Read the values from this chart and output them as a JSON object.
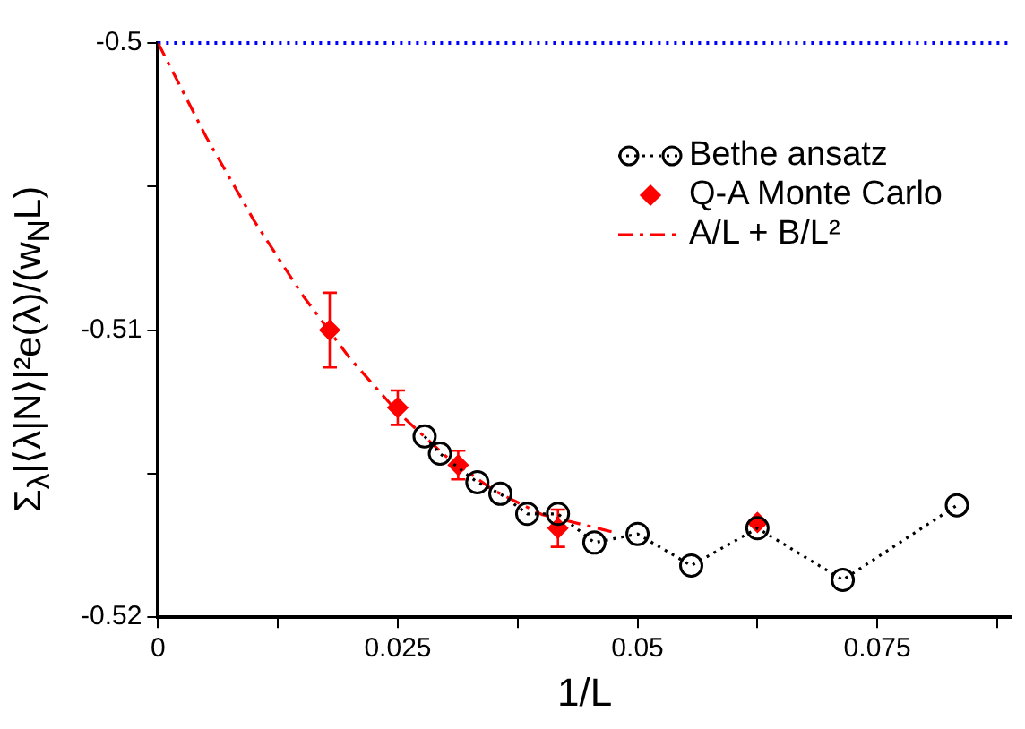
{
  "chart_data": {
    "type": "line",
    "xlabel": "1/L",
    "ylabel": "Σ$_{λ}$|⟨λ|N⟩|²e(λ)/(w$_{N}$L)",
    "xlim": [
      0,
      0.089
    ],
    "ylim": [
      -0.52,
      -0.5
    ],
    "xticks": [
      0,
      {
        "value": 0.0125,
        "label": null
      },
      0.025,
      {
        "value": 0.0375,
        "label": null
      },
      0.05,
      {
        "value": 0.0625,
        "label": null
      },
      0.075,
      {
        "value": 0.0875,
        "label": null
      }
    ],
    "yticks": [
      -0.52,
      {
        "value": -0.515,
        "label": null
      },
      -0.51,
      {
        "value": -0.505,
        "label": null
      },
      -0.5
    ],
    "grid": false,
    "legend": "top right",
    "ref_lines": [
      {
        "axis": "y",
        "value": -0.5,
        "color": "#0000ff",
        "line_style": "dotted"
      }
    ],
    "series": [
      {
        "name": "Bethe ansatz",
        "type": "line",
        "color": "#000000",
        "marker": "circle",
        "line_style": "dotted",
        "x": [
          0.0278,
          0.0294,
          0.0333,
          0.0357,
          0.0385,
          0.0417,
          0.0455,
          0.05,
          0.0556,
          0.0625,
          0.0714,
          0.0833
        ],
        "values": [
          -0.5137,
          -0.5143,
          -0.5153,
          -0.5157,
          -0.5164,
          -0.5164,
          -0.5174,
          -0.5171,
          -0.5182,
          -0.5169,
          -0.5187,
          -0.5161
        ]
      },
      {
        "name": "Q-A Monte Carlo",
        "type": "scatter",
        "color": "#ff0000",
        "marker": "diamond",
        "x": [
          0.0179,
          0.025,
          0.0313,
          0.0417,
          0.0625
        ],
        "values": [
          -0.51,
          -0.5127,
          -0.5147,
          -0.5169,
          -0.5167
        ],
        "errors": [
          0.0013,
          0.0006,
          0.0005,
          0.00065,
          0.0001
        ]
      },
      {
        "name": "A/L + B/L²",
        "type": "line",
        "color": "#ff0000",
        "marker": "none",
        "line_style": "dashed",
        "x": [
          0,
          0.005,
          0.01,
          0.015,
          0.02,
          0.025,
          0.03,
          0.035,
          0.04,
          0.0475
        ],
        "values": [
          -0.5,
          -0.50326,
          -0.50618,
          -0.50875,
          -0.51098,
          -0.51286,
          -0.51439,
          -0.51558,
          -0.51642,
          -0.51704
        ]
      }
    ]
  }
}
